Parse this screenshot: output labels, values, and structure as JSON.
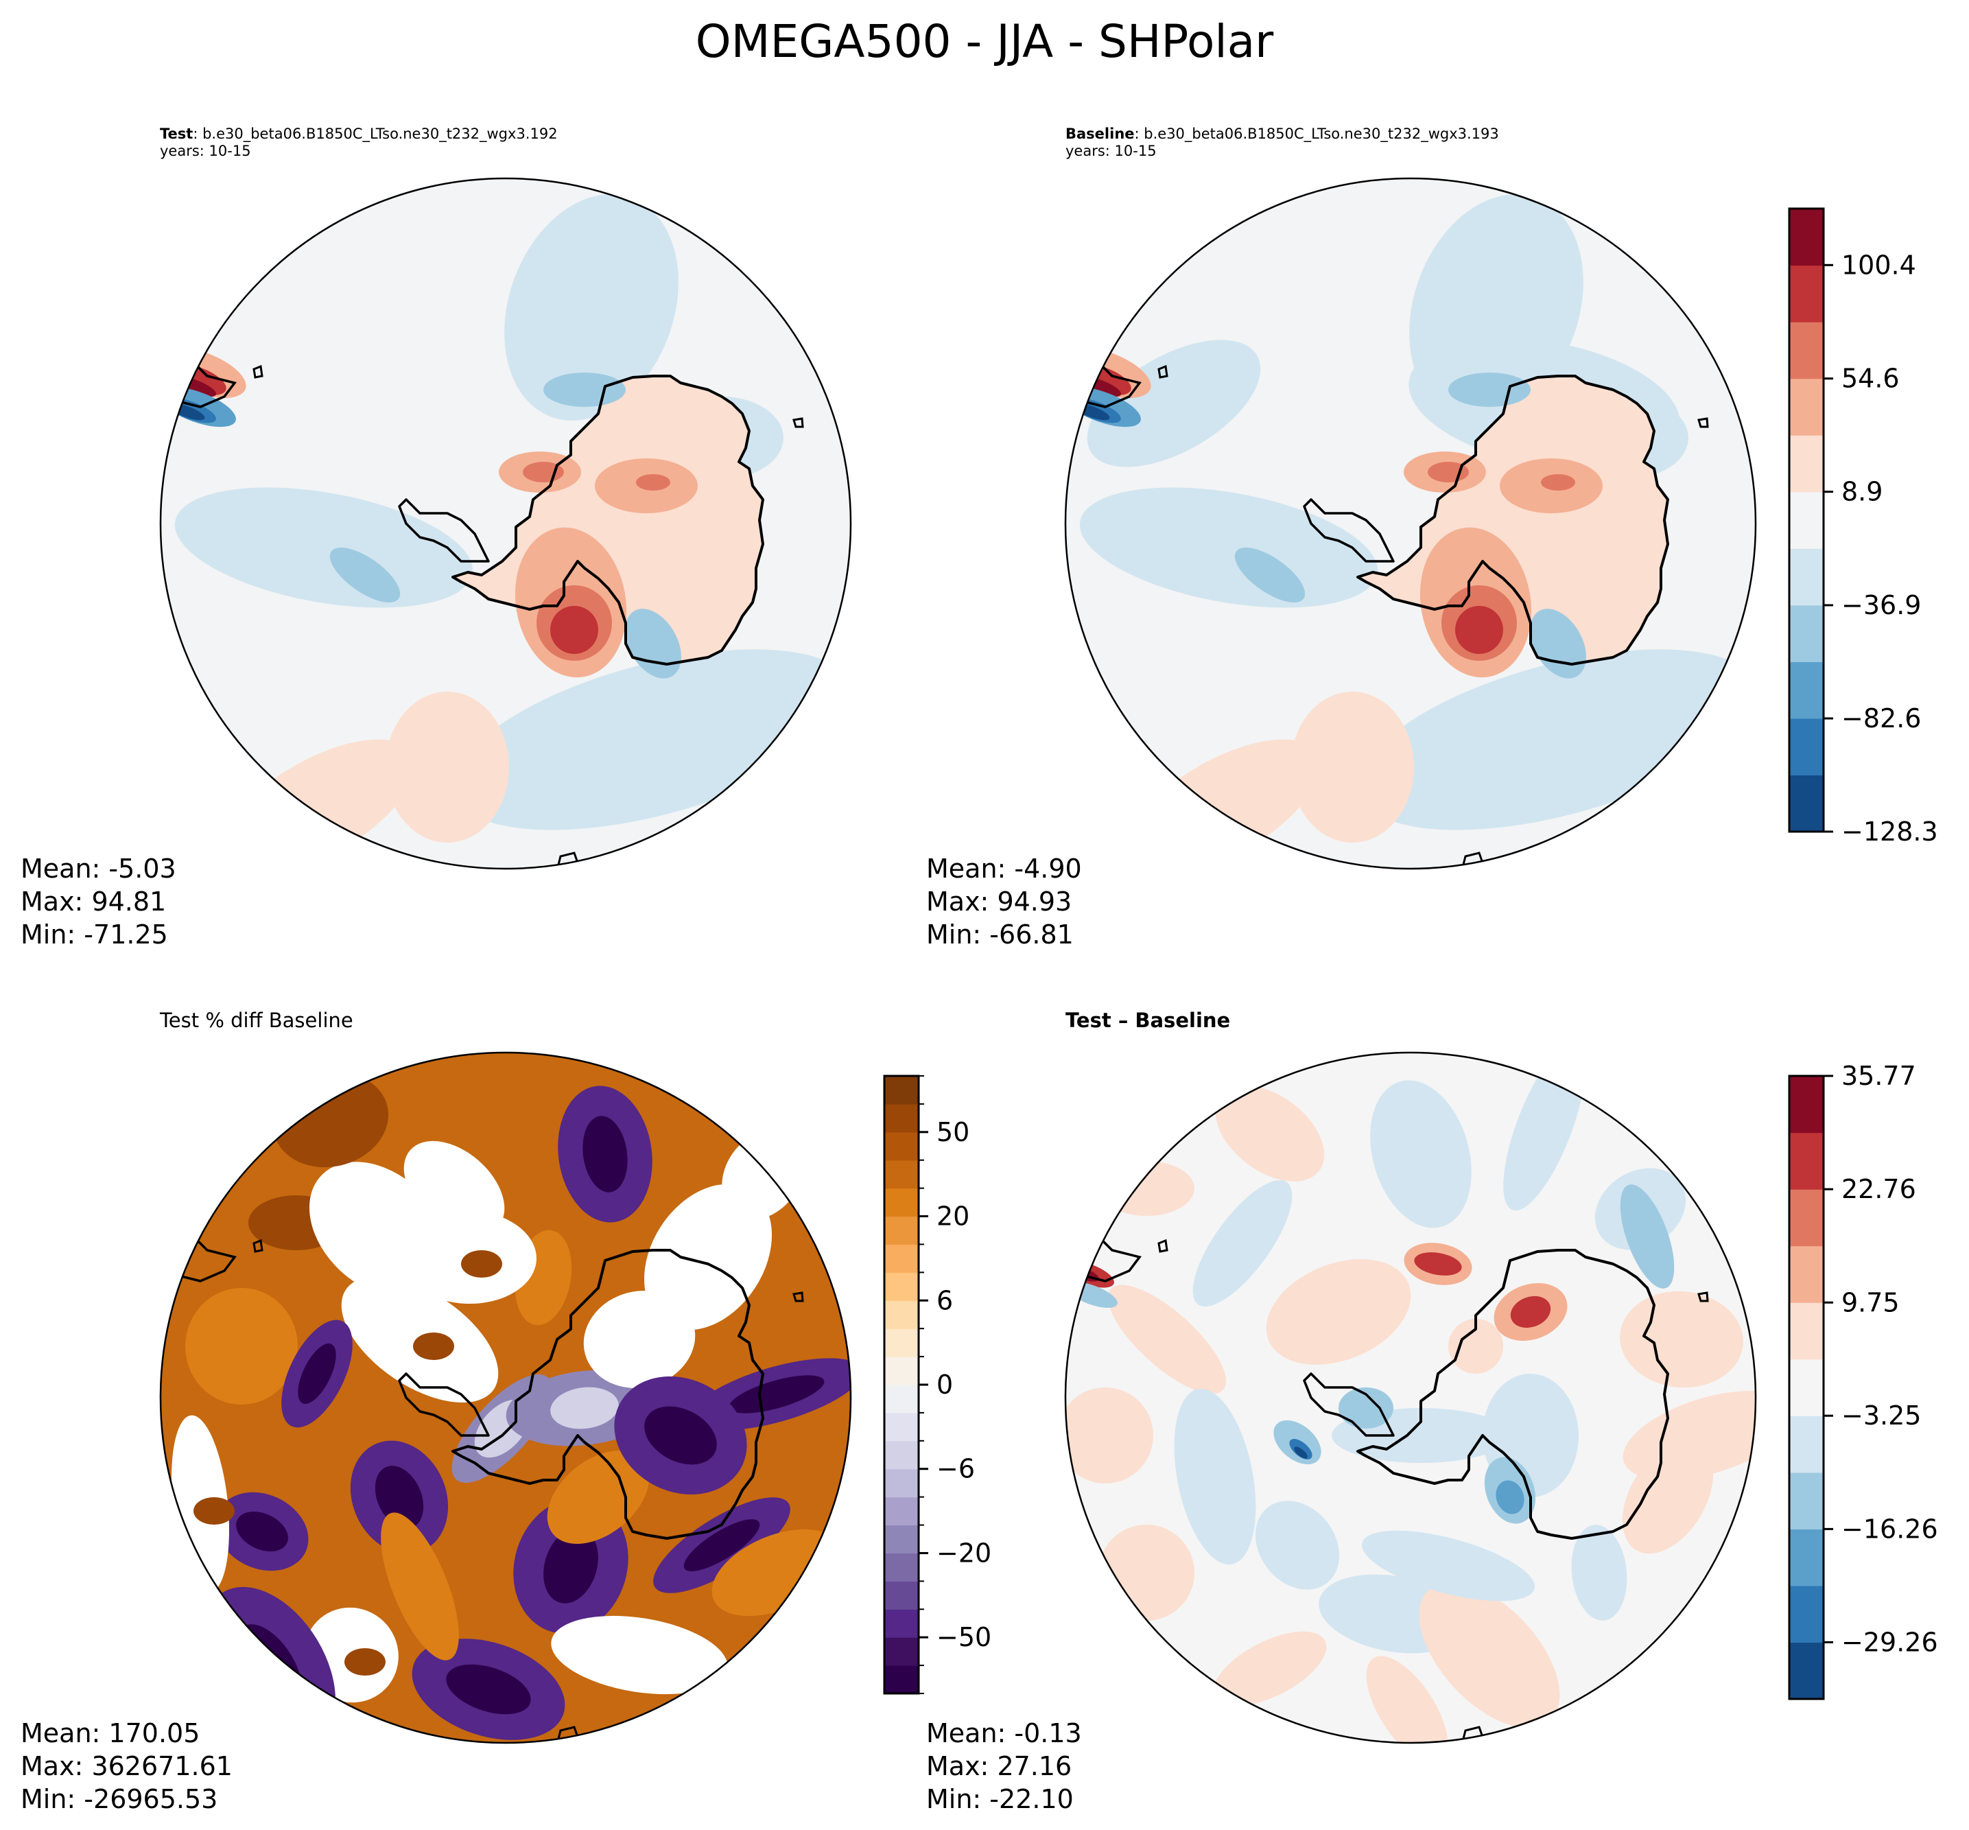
{
  "figure": {
    "title": "OMEGA500 - JJA - SHPolar"
  },
  "chart_data": [
    {
      "type": "heatmap",
      "panel": "test",
      "projection": "south-polar-stereographic",
      "title_bold": "Test",
      "title_rest": ": b.e30_beta06.B1850C_LTso.ne30_t232_wgx3.192",
      "subtitle": "years: 10-15",
      "stats": {
        "mean": "Mean: -5.03",
        "max": "Max: 94.81",
        "min": "Min: -71.25"
      },
      "colormap": "RdBu_r",
      "colorbar": "shared"
    },
    {
      "type": "heatmap",
      "panel": "baseline",
      "projection": "south-polar-stereographic",
      "title_bold": "Baseline",
      "title_rest": ": b.e30_beta06.B1850C_LTso.ne30_t232_wgx3.193",
      "subtitle": "years: 10-15",
      "stats": {
        "mean": "Mean: -4.90",
        "max": "Max: 94.93",
        "min": "Min: -66.81"
      },
      "colormap": "RdBu_r",
      "colorbar": {
        "levels": [
          -128.3,
          -105.4,
          -82.6,
          -59.7,
          -36.9,
          -14.0,
          8.9,
          31.7,
          54.6,
          77.5,
          100.4,
          123.2
        ],
        "ticks": [
          -128.3,
          -82.6,
          -36.9,
          8.9,
          54.6,
          100.4
        ],
        "tick_labels": [
          "−128.3",
          "−82.6",
          "−36.9",
          "8.9",
          "54.6",
          "100.4"
        ],
        "colors": [
          "#134b87",
          "#2e78b5",
          "#5aa0cb",
          "#9ecae1",
          "#d1e5f0",
          "#f3f4f5",
          "#fbdfd1",
          "#f4b093",
          "#e07861",
          "#c03336",
          "#870b25"
        ]
      }
    },
    {
      "type": "heatmap",
      "panel": "percent-diff",
      "projection": "south-polar-stereographic",
      "title": "Test % diff Baseline",
      "stats": {
        "mean": "Mean: 170.05",
        "max": "Max: 362671.61",
        "min": "Min: -26965.53"
      },
      "colormap": "PuOr_r",
      "colorbar": {
        "ticks": [
          -50,
          -20,
          -6,
          0,
          6,
          20,
          50
        ],
        "tick_labels": [
          "−50",
          "−20",
          "−6",
          "0",
          "6",
          "20",
          "50"
        ],
        "n_bins": 22,
        "colors": [
          "#2d004b",
          "#3f0f60",
          "#542788",
          "#674a96",
          "#7b6aa6",
          "#8f86b8",
          "#a9a1cb",
          "#bfbbdb",
          "#d2d1e6",
          "#e2e1ef",
          "#eff0f3",
          "#f7f1e8",
          "#fde8cc",
          "#fddbaa",
          "#fdc57f",
          "#f9ad5f",
          "#eb963a",
          "#dc7f16",
          "#c66910",
          "#b2560a",
          "#9a4708",
          "#7f3b08"
        ]
      }
    },
    {
      "type": "heatmap",
      "panel": "difference",
      "projection": "south-polar-stereographic",
      "title": "Test – Baseline",
      "stats": {
        "mean": "Mean: -0.13",
        "max": "Max: 27.16",
        "min": "Min: -22.10"
      },
      "colormap": "RdBu_r",
      "colorbar": {
        "levels": [
          -35.77,
          -29.26,
          -22.76,
          -16.26,
          -9.75,
          -3.25,
          3.25,
          9.75,
          16.26,
          22.76,
          29.26,
          35.77
        ],
        "ticks": [
          -29.26,
          -16.26,
          -3.25,
          9.75,
          22.76,
          35.77
        ],
        "tick_labels": [
          "−29.26",
          "−16.26",
          "−3.25",
          "9.75",
          "22.76",
          "35.77"
        ],
        "colors": [
          "#134b87",
          "#2e78b5",
          "#5aa0cb",
          "#9ecae1",
          "#d3e5f1",
          "#f5f5f5",
          "#fbdfd1",
          "#f4b093",
          "#e07861",
          "#c03336",
          "#870b25"
        ]
      }
    }
  ]
}
